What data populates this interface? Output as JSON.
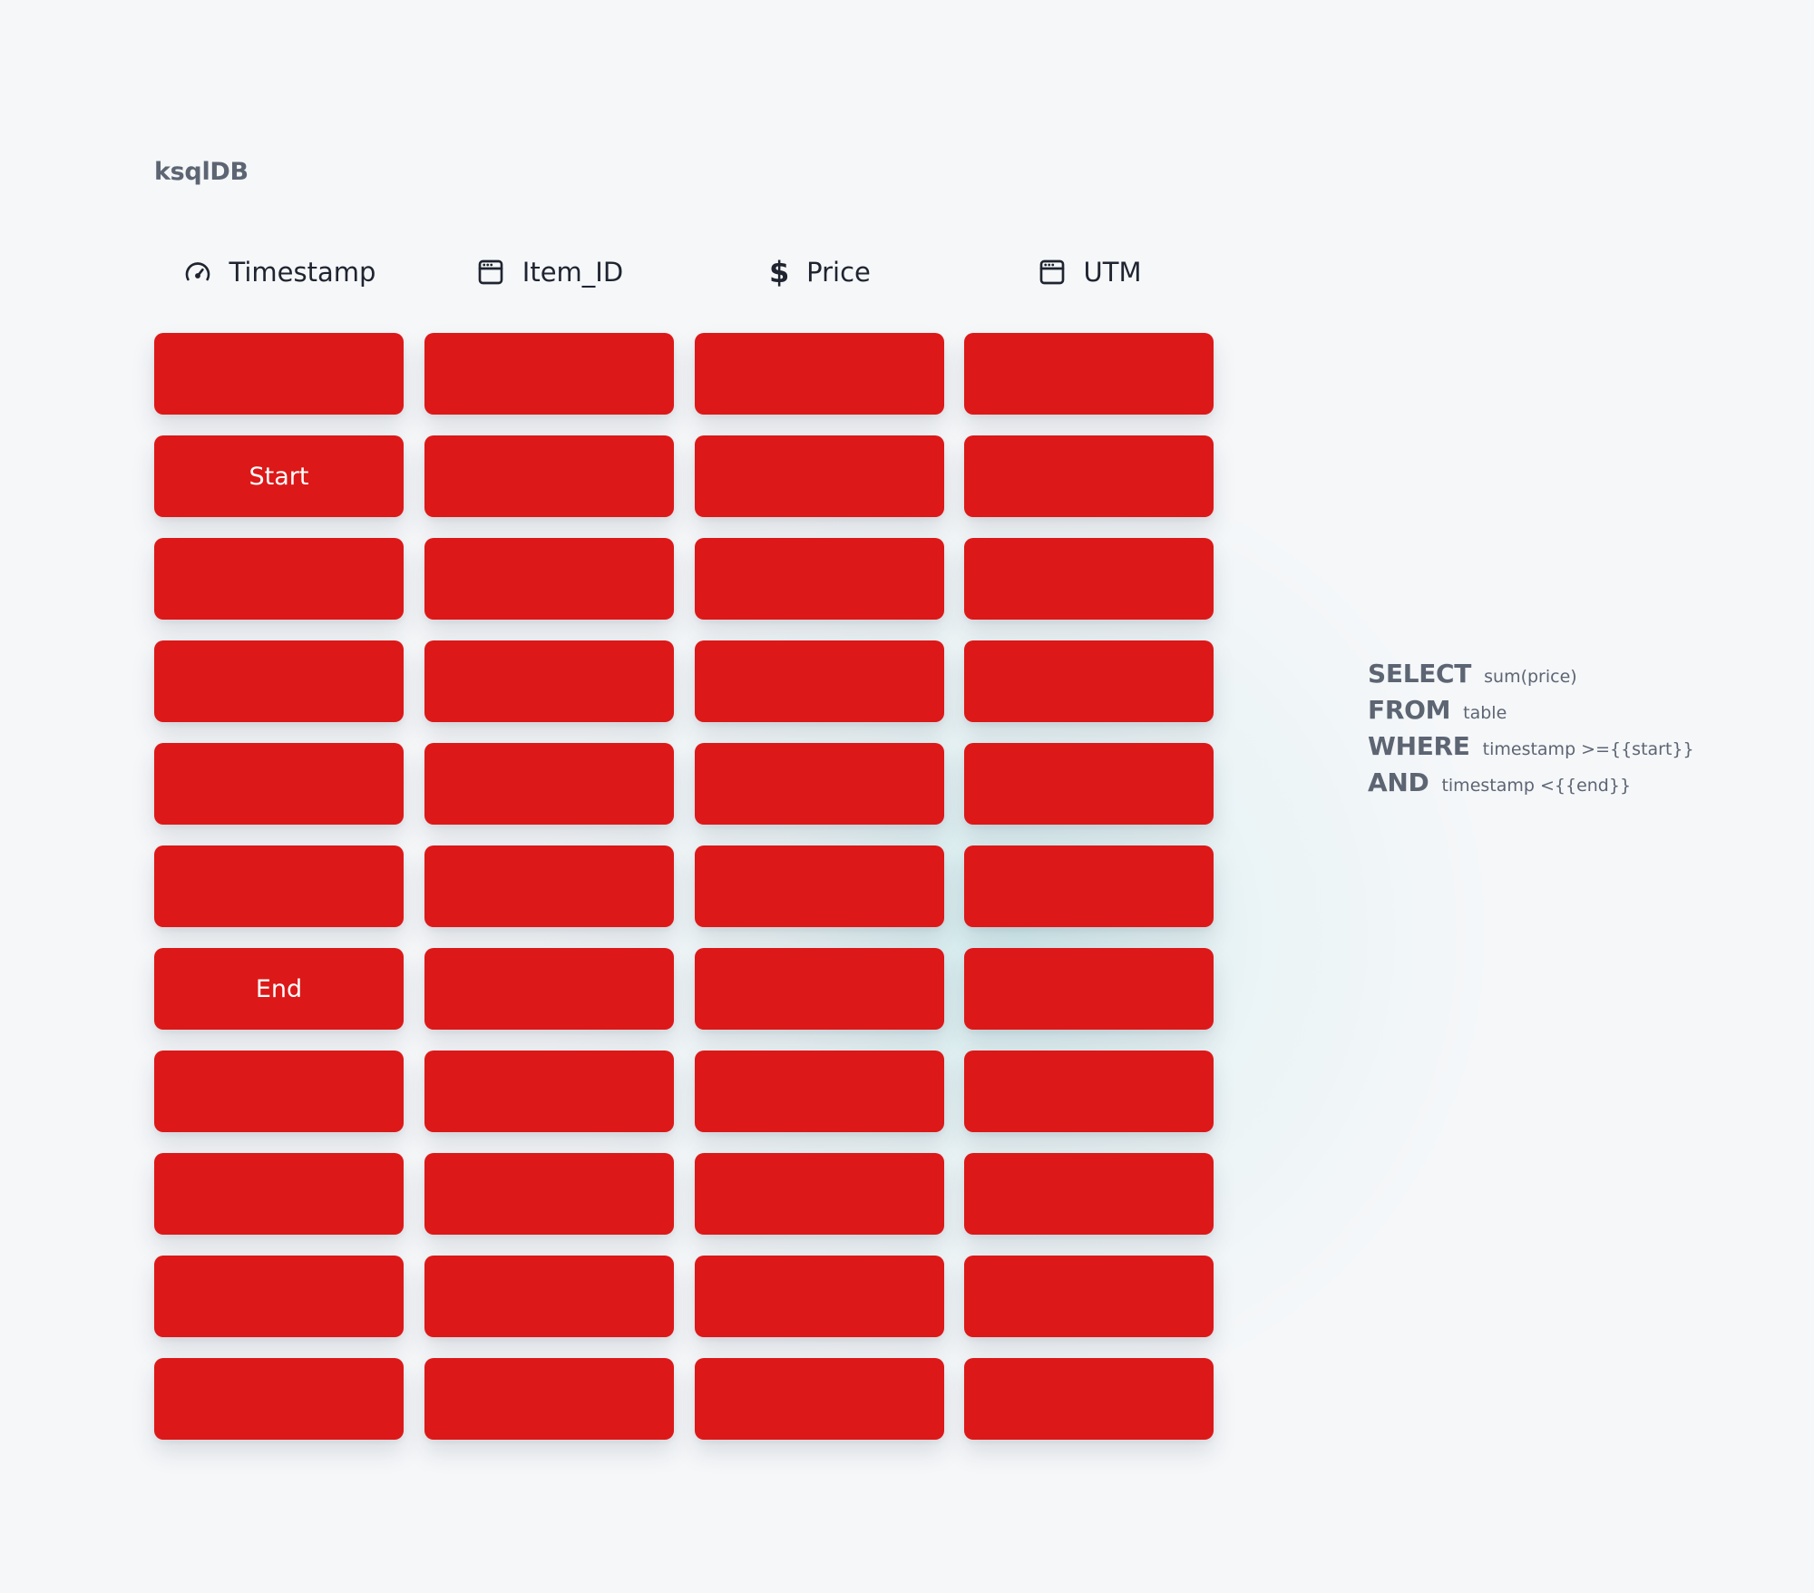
{
  "brand": "ksqlDB",
  "columns": [
    {
      "label": "Timestamp",
      "icon": "gauge-icon"
    },
    {
      "label": "Item_ID",
      "icon": "window-icon"
    },
    {
      "label": "Price",
      "icon": "dollar-icon"
    },
    {
      "label": "UTM",
      "icon": "window-icon"
    }
  ],
  "grid": {
    "row_count": 11,
    "cell_color": "#dd1818",
    "markers": [
      {
        "row": 2,
        "column": 1,
        "label": "Start"
      },
      {
        "row": 7,
        "column": 1,
        "label": "End"
      }
    ]
  },
  "query": [
    {
      "keyword": "SELECT",
      "argument": "sum(price)"
    },
    {
      "keyword": "FROM",
      "argument": "table"
    },
    {
      "keyword": "WHERE",
      "argument": "timestamp >={{start}}"
    },
    {
      "keyword": "AND",
      "argument": "timestamp <{{end}}"
    }
  ]
}
